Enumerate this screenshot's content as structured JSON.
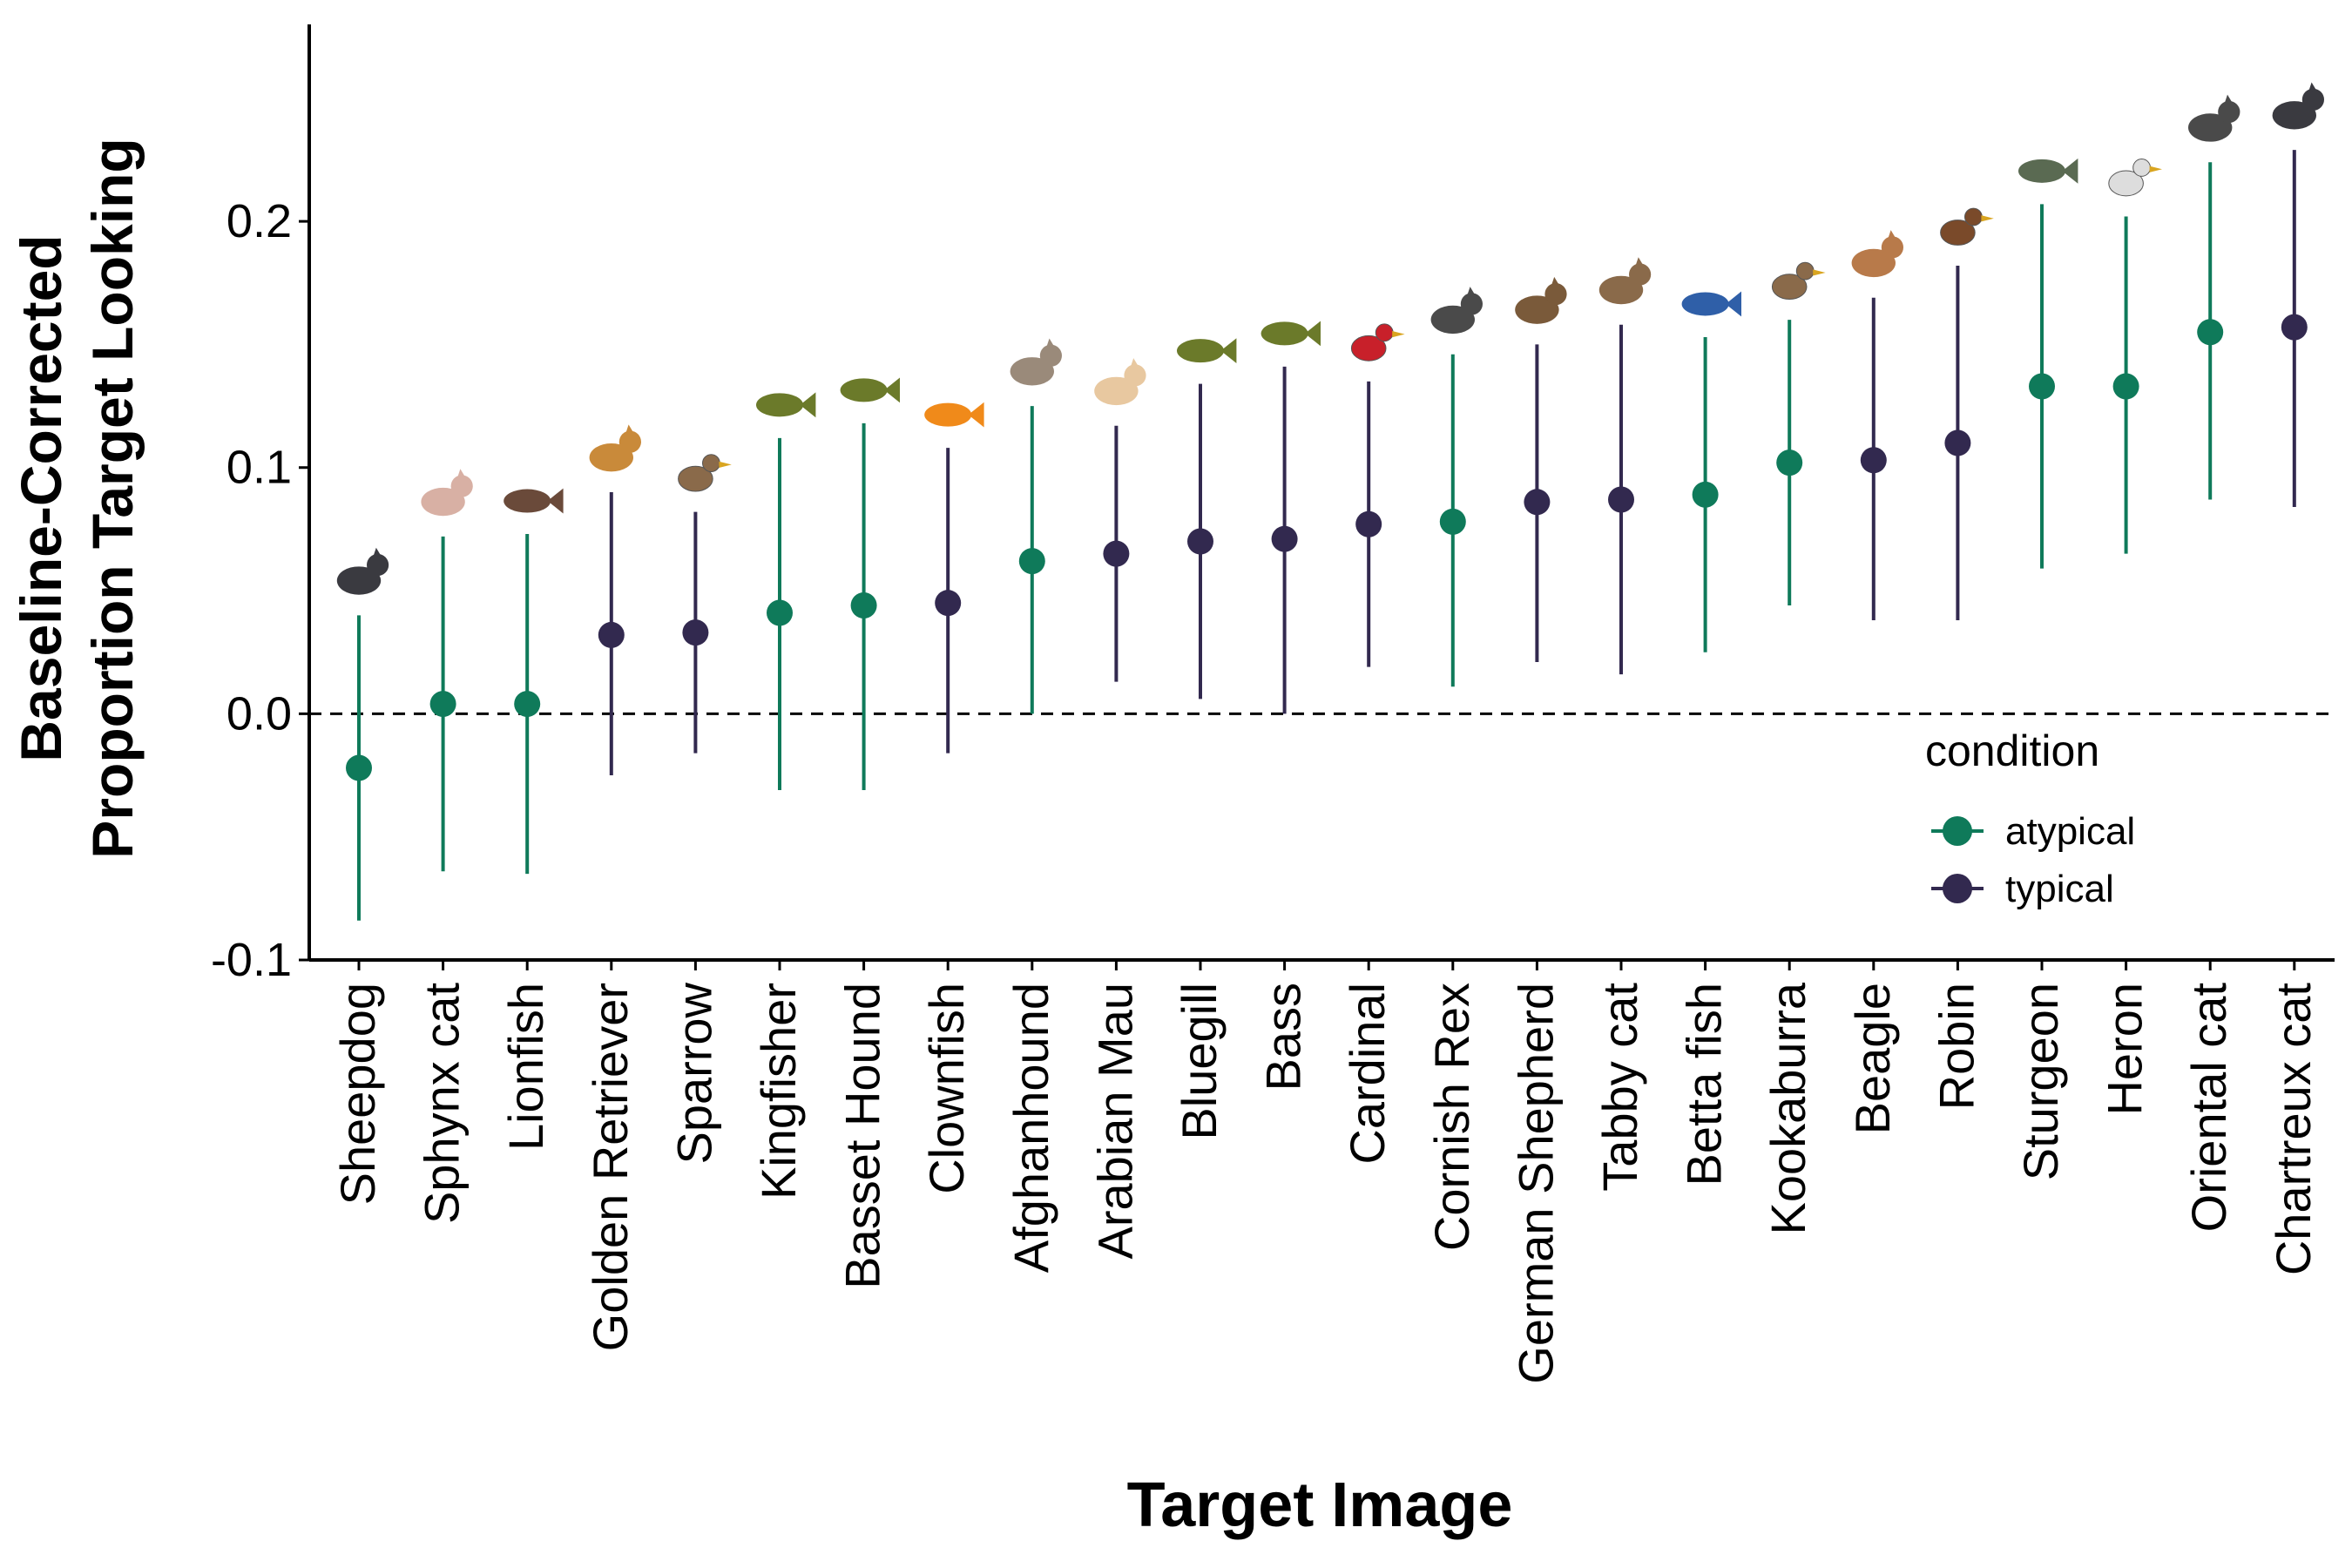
{
  "chart_data": {
    "type": "scatter",
    "subtype": "pointrange",
    "title": "",
    "xlabel": "Target Image",
    "ylabel_lines": [
      "Baseline-Corrected",
      "Proportion Target Looking"
    ],
    "ylim": [
      -0.1,
      0.28
    ],
    "yticks": [
      -0.1,
      0.0,
      0.1,
      0.2
    ],
    "ytick_labels": [
      "-0.1",
      "0.0",
      "0.1",
      "0.2"
    ],
    "reference_line": {
      "y": 0.0,
      "style": "dashed"
    },
    "grid": false,
    "legend": {
      "title": "condition",
      "placement": "right",
      "entries": [
        {
          "name": "atypical",
          "color": "#0f7a5a"
        },
        {
          "name": "typical",
          "color": "#32294f"
        }
      ]
    },
    "categories": [
      "Sheepdog",
      "Sphynx cat",
      "Lionfish",
      "Golden Retriever",
      "Sparrow",
      "Kingfisher",
      "Basset Hound",
      "Clownfish",
      "Afghanhound",
      "Arabian Mau",
      "Bluegill",
      "Bass",
      "Cardinal",
      "Cornish Rex",
      "German Shepherd",
      "Tabby cat",
      "Betta fish",
      "Kookaburra",
      "Beagle",
      "Robin",
      "Sturgeon",
      "Heron",
      "Oriental cat",
      "Chartreux cat"
    ],
    "points": [
      {
        "category": "Sheepdog",
        "condition": "atypical",
        "y": -0.022,
        "ymin": -0.084,
        "ymax": 0.04,
        "icon": "sheepdog-icon"
      },
      {
        "category": "Sphynx cat",
        "condition": "atypical",
        "y": 0.004,
        "ymin": -0.064,
        "ymax": 0.072,
        "icon": "sphynx-cat-icon"
      },
      {
        "category": "Lionfish",
        "condition": "atypical",
        "y": 0.004,
        "ymin": -0.065,
        "ymax": 0.073,
        "icon": "lionfish-icon"
      },
      {
        "category": "Golden Retriever",
        "condition": "typical",
        "y": 0.032,
        "ymin": -0.025,
        "ymax": 0.09,
        "icon": "golden-retriever-icon"
      },
      {
        "category": "Sparrow",
        "condition": "typical",
        "y": 0.033,
        "ymin": -0.016,
        "ymax": 0.082,
        "icon": "sparrow-icon"
      },
      {
        "category": "Kingfisher",
        "condition": "atypical",
        "y": 0.041,
        "ymin": -0.031,
        "ymax": 0.112,
        "icon": "kingfisher-icon"
      },
      {
        "category": "Basset Hound",
        "condition": "atypical",
        "y": 0.044,
        "ymin": -0.031,
        "ymax": 0.118,
        "icon": "basset-hound-icon"
      },
      {
        "category": "Clownfish",
        "condition": "typical",
        "y": 0.045,
        "ymin": -0.016,
        "ymax": 0.108,
        "icon": "clownfish-icon"
      },
      {
        "category": "Afghanhound",
        "condition": "atypical",
        "y": 0.062,
        "ymin": 0.0,
        "ymax": 0.125,
        "icon": "afghanhound-icon"
      },
      {
        "category": "Arabian Mau",
        "condition": "typical",
        "y": 0.065,
        "ymin": 0.013,
        "ymax": 0.117,
        "icon": "arabian-mau-icon"
      },
      {
        "category": "Bluegill",
        "condition": "typical",
        "y": 0.07,
        "ymin": 0.006,
        "ymax": 0.134,
        "icon": "bluegill-icon"
      },
      {
        "category": "Bass",
        "condition": "typical",
        "y": 0.071,
        "ymin": 0.0,
        "ymax": 0.141,
        "icon": "bass-icon"
      },
      {
        "category": "Cardinal",
        "condition": "typical",
        "y": 0.077,
        "ymin": 0.019,
        "ymax": 0.135,
        "icon": "cardinal-icon"
      },
      {
        "category": "Cornish Rex",
        "condition": "atypical",
        "y": 0.078,
        "ymin": 0.011,
        "ymax": 0.146,
        "icon": "cornish-rex-icon"
      },
      {
        "category": "German Shepherd",
        "condition": "typical",
        "y": 0.086,
        "ymin": 0.021,
        "ymax": 0.15,
        "icon": "german-shepherd-icon"
      },
      {
        "category": "Tabby cat",
        "condition": "typical",
        "y": 0.087,
        "ymin": 0.016,
        "ymax": 0.158,
        "icon": "tabby-cat-icon"
      },
      {
        "category": "Betta fish",
        "condition": "atypical",
        "y": 0.089,
        "ymin": 0.025,
        "ymax": 0.153,
        "icon": "betta-fish-icon"
      },
      {
        "category": "Kookaburra",
        "condition": "atypical",
        "y": 0.102,
        "ymin": 0.044,
        "ymax": 0.16,
        "icon": "kookaburra-icon"
      },
      {
        "category": "Beagle",
        "condition": "typical",
        "y": 0.103,
        "ymin": 0.038,
        "ymax": 0.169,
        "icon": "beagle-icon"
      },
      {
        "category": "Robin",
        "condition": "typical",
        "y": 0.11,
        "ymin": 0.038,
        "ymax": 0.182,
        "icon": "robin-icon"
      },
      {
        "category": "Sturgeon",
        "condition": "atypical",
        "y": 0.133,
        "ymin": 0.059,
        "ymax": 0.207,
        "icon": "sturgeon-icon"
      },
      {
        "category": "Heron",
        "condition": "atypical",
        "y": 0.133,
        "ymin": 0.065,
        "ymax": 0.202,
        "icon": "heron-icon"
      },
      {
        "category": "Oriental cat",
        "condition": "atypical",
        "y": 0.155,
        "ymin": 0.087,
        "ymax": 0.224,
        "icon": "oriental-cat-icon"
      },
      {
        "category": "Chartreux cat",
        "condition": "typical",
        "y": 0.157,
        "ymin": 0.084,
        "ymax": 0.229,
        "icon": "chartreux-cat-icon"
      }
    ]
  }
}
